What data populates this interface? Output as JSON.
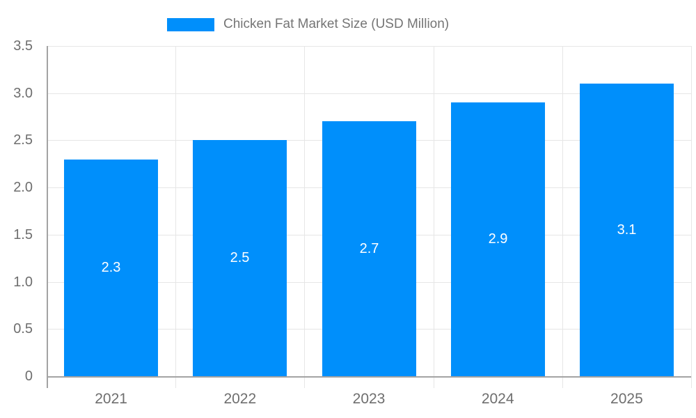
{
  "chart_data": {
    "type": "bar",
    "title": "Chicken Fat Market Size (USD Million)",
    "legend": {
      "position": "top",
      "entries": [
        "Chicken Fat Market Size (USD Million)"
      ]
    },
    "categories": [
      "2021",
      "2022",
      "2023",
      "2024",
      "2025"
    ],
    "values": [
      2.3,
      2.5,
      2.7,
      2.9,
      3.1
    ],
    "value_labels": [
      "2.3",
      "2.5",
      "2.7",
      "2.9",
      "3.1"
    ],
    "xlabel": "",
    "ylabel": "",
    "ylim": [
      0,
      3.5
    ],
    "yticks": [
      {
        "value": 0,
        "label": "0"
      },
      {
        "value": 0.5,
        "label": "0.5"
      },
      {
        "value": 1,
        "label": "1.0"
      },
      {
        "value": 1.5,
        "label": "1.5"
      },
      {
        "value": 2,
        "label": "2.0"
      },
      {
        "value": 2.5,
        "label": "2.5"
      },
      {
        "value": 3,
        "label": "3.0"
      },
      {
        "value": 3.5,
        "label": "3.5"
      }
    ],
    "grid": true,
    "colors": {
      "bar": "#008FFB",
      "grid": "#e6e6e6",
      "axis": "#a3a3a3",
      "tick_text": "#6e6e6e",
      "legend_text": "#757575",
      "value_text": "#ffffff",
      "background": "#ffffff"
    }
  }
}
